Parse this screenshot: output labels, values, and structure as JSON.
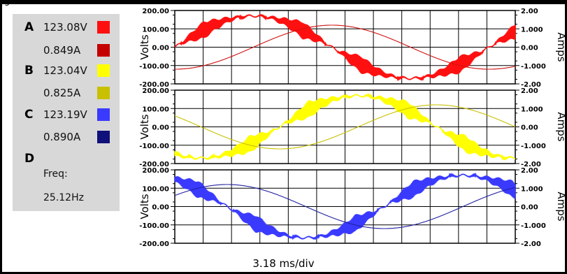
{
  "header": {
    "title_fragment": "g"
  },
  "phases": [
    {
      "letter": "A",
      "voltage": "123.08V",
      "current": "0.849A",
      "v_color": "#ff1010",
      "a_color": "#c40000"
    },
    {
      "letter": "B",
      "voltage": "123.04V",
      "current": "0.825A",
      "v_color": "#ffff00",
      "a_color": "#c8c000"
    },
    {
      "letter": "C",
      "voltage": "123.19V",
      "current": "0.890A",
      "v_color": "#3a3aff",
      "a_color": "#10107a"
    },
    {
      "letter": "D",
      "voltage": "",
      "current": "",
      "v_color": "",
      "a_color": ""
    }
  ],
  "freq": {
    "label": "Freq:",
    "value": "25.12Hz"
  },
  "timebase": "3.18 ms/div",
  "chart_data": [
    {
      "type": "line",
      "panel": "A",
      "left_axis": {
        "label": "Volts",
        "ticks": [
          "200.00",
          "100.00",
          "0.00",
          "-100.00",
          "-200.00"
        ],
        "ylim": [
          -200,
          200
        ]
      },
      "right_axis": {
        "label": "Amps",
        "ticks": [
          "2.00",
          "1.000",
          "0.00",
          "-1.000",
          "-2.00"
        ],
        "ylim": [
          -2,
          2
        ]
      },
      "x_divisions": 12,
      "series": [
        {
          "name": "A Volts",
          "axis": "left",
          "color": "#ff1010",
          "peak": 170,
          "phase_deg": 0,
          "noise": true
        },
        {
          "name": "A Amps",
          "axis": "right",
          "color": "#d01010",
          "peak": 1.2,
          "phase_deg": -90,
          "noise": false
        }
      ]
    },
    {
      "type": "line",
      "panel": "B",
      "left_axis": {
        "label": "Volts",
        "ticks": [
          "200.00",
          "100.00",
          "0.00",
          "-100.00",
          "-200.00"
        ],
        "ylim": [
          -200,
          200
        ]
      },
      "right_axis": {
        "label": "Amps",
        "ticks": [
          "2.00",
          "1.000",
          "0.00",
          "-1.000",
          "-2.00"
        ],
        "ylim": [
          -2,
          2
        ]
      },
      "x_divisions": 12,
      "series": [
        {
          "name": "B Volts",
          "axis": "left",
          "color": "#ffff00",
          "peak": 170,
          "phase_deg": -120,
          "noise": true
        },
        {
          "name": "B Amps",
          "axis": "right",
          "color": "#c8c000",
          "peak": 1.2,
          "phase_deg": -210,
          "noise": false
        }
      ]
    },
    {
      "type": "line",
      "panel": "C",
      "left_axis": {
        "label": "Volts",
        "ticks": [
          "200.00",
          "100.00",
          "0.00",
          "-100.00",
          "-200.00"
        ],
        "ylim": [
          -200,
          200
        ]
      },
      "right_axis": {
        "label": "Amps",
        "ticks": [
          "2.00",
          "1.000",
          "0.00",
          "-1.000",
          "-2.00"
        ],
        "ylim": [
          -2,
          2
        ]
      },
      "x_divisions": 12,
      "series": [
        {
          "name": "C Volts",
          "axis": "left",
          "color": "#3a3aff",
          "peak": 170,
          "phase_deg": 120,
          "noise": true
        },
        {
          "name": "C Amps",
          "axis": "right",
          "color": "#2020a0",
          "peak": 1.2,
          "phase_deg": 30,
          "noise": false
        }
      ]
    }
  ]
}
